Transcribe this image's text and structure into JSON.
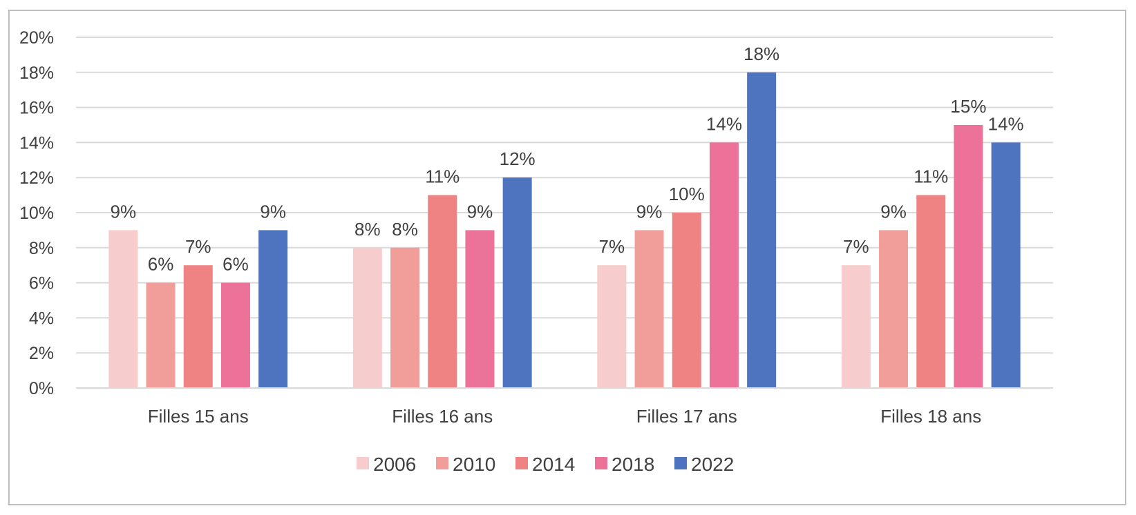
{
  "chart_data": {
    "type": "bar",
    "categories": [
      "Filles 15 ans",
      "Filles 16 ans",
      "Filles 17 ans",
      "Filles 18 ans"
    ],
    "series": [
      {
        "name": "2006",
        "color": "#f7cccc",
        "values": [
          9,
          8,
          7,
          7
        ]
      },
      {
        "name": "2010",
        "color": "#f19e9a",
        "values": [
          6,
          8,
          9,
          9
        ]
      },
      {
        "name": "2014",
        "color": "#ef8283",
        "values": [
          7,
          11,
          10,
          11
        ]
      },
      {
        "name": "2018",
        "color": "#ec7299",
        "values": [
          6,
          9,
          14,
          15
        ]
      },
      {
        "name": "2022",
        "color": "#4e74c0",
        "values": [
          9,
          12,
          18,
          14
        ]
      }
    ],
    "data_labels": [
      [
        "9%",
        "6%",
        "7%",
        "6%",
        "9%"
      ],
      [
        "8%",
        "8%",
        "11%",
        "9%",
        "12%"
      ],
      [
        "7%",
        "9%",
        "10%",
        "14%",
        "18%"
      ],
      [
        "7%",
        "9%",
        "11%",
        "15%",
        "14%"
      ]
    ],
    "y_ticks": [
      0,
      2,
      4,
      6,
      8,
      10,
      12,
      14,
      16,
      18,
      20
    ],
    "y_tick_labels": [
      "0%",
      "2%",
      "4%",
      "6%",
      "8%",
      "10%",
      "12%",
      "14%",
      "16%",
      "18%",
      "20%"
    ],
    "ylim": [
      0,
      20
    ],
    "grid": true,
    "legend_position": "bottom"
  }
}
